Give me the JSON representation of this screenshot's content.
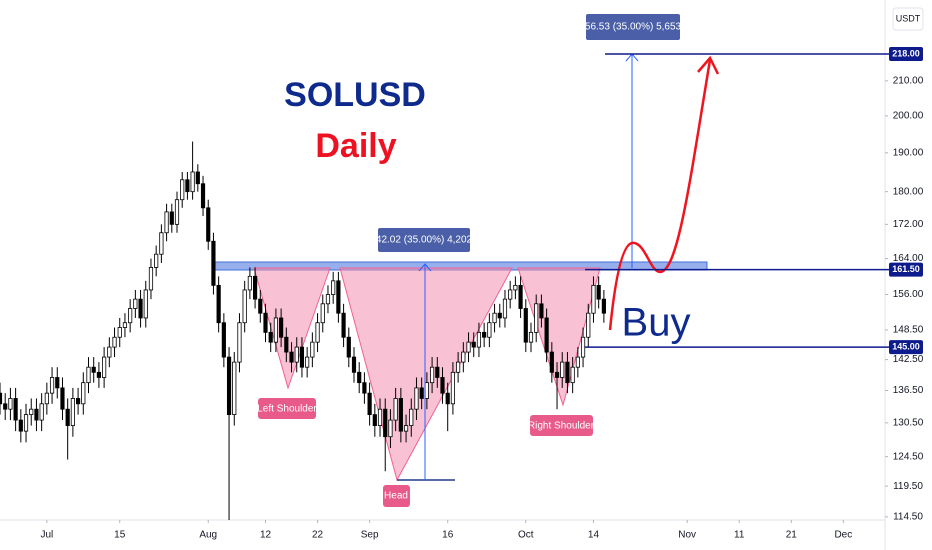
{
  "chart_data": {
    "type": "candlestick",
    "title": "SOLUSD",
    "subtitle": "Daily",
    "currency": "USDT",
    "log_scale": true,
    "up_color": "#ffffff",
    "down_color": "#000000",
    "x": [
      -9,
      -8,
      -7,
      -6,
      -5,
      -4,
      -3,
      -2,
      -1,
      0,
      1,
      2,
      3,
      4,
      5,
      6,
      7,
      8,
      9,
      10,
      11,
      12,
      13,
      14,
      15,
      16,
      17,
      18,
      19,
      20,
      21,
      22,
      23,
      24,
      25,
      26,
      27,
      28,
      29,
      30,
      31,
      32,
      33,
      34,
      35,
      36,
      37,
      38,
      39,
      40,
      41,
      42,
      43,
      44,
      45,
      46,
      47,
      48,
      49,
      50,
      51,
      52,
      53,
      54,
      55,
      56,
      57,
      58,
      59,
      60,
      61,
      62,
      63,
      64,
      65,
      66,
      67,
      68,
      69,
      70,
      71,
      72,
      73,
      74,
      75,
      76,
      77,
      78,
      79,
      80,
      81,
      82,
      83,
      84,
      85,
      86,
      87,
      88,
      89,
      90,
      91,
      92,
      93,
      94,
      95,
      96,
      97,
      98,
      99,
      100,
      101,
      102,
      103,
      104,
      105,
      106,
      107
    ],
    "open": [
      136,
      134,
      133,
      135,
      131,
      129,
      132,
      133,
      131,
      134,
      136,
      139,
      137,
      133,
      130,
      135,
      134,
      138,
      141,
      140,
      139,
      143,
      145,
      147,
      149,
      150,
      153,
      155,
      151,
      157,
      162,
      165,
      170,
      175,
      172,
      178,
      183,
      180,
      185,
      182,
      176,
      168,
      158,
      150,
      143,
      132,
      142,
      150,
      157,
      160,
      155,
      152,
      148,
      146,
      151,
      147,
      144,
      142,
      145,
      141,
      143,
      146,
      150,
      154,
      156,
      159,
      152,
      147,
      143,
      140,
      138,
      136,
      132,
      130,
      133,
      128,
      131,
      135,
      129,
      130,
      133,
      137,
      135,
      138,
      141,
      139,
      136,
      134,
      140,
      142,
      144,
      146,
      145,
      148,
      147,
      150,
      152,
      151,
      155,
      157,
      158,
      153,
      146,
      148,
      154,
      151,
      144,
      140,
      139,
      142,
      138,
      141,
      143,
      147,
      152,
      158,
      155
    ],
    "high": [
      138,
      136,
      137,
      137,
      133,
      134,
      135,
      135,
      136,
      138,
      141,
      141,
      139,
      135,
      137,
      137,
      140,
      143,
      143,
      142,
      145,
      147,
      149,
      151,
      152,
      155,
      157,
      157,
      159,
      164,
      167,
      172,
      177,
      177,
      180,
      185,
      185,
      193,
      187,
      184,
      178,
      170,
      160,
      152,
      145,
      144,
      152,
      159,
      162,
      162,
      157,
      154,
      150,
      153,
      153,
      149,
      146,
      147,
      147,
      145,
      148,
      152,
      156,
      158,
      161,
      161,
      154,
      149,
      145,
      142,
      140,
      138,
      134,
      135,
      135,
      133,
      137,
      137,
      132,
      135,
      139,
      139,
      140,
      143,
      143,
      141,
      138,
      142,
      144,
      146,
      148,
      148,
      150,
      150,
      152,
      154,
      154,
      157,
      159,
      160,
      160,
      155,
      150,
      156,
      156,
      153,
      146,
      142,
      144,
      144,
      143,
      145,
      149,
      154,
      160,
      160,
      157
    ],
    "low": [
      132,
      131,
      131,
      129,
      127,
      127,
      130,
      129,
      129,
      132,
      134,
      135,
      131,
      124,
      128,
      132,
      132,
      136,
      138,
      137,
      137,
      141,
      143,
      145,
      147,
      148,
      151,
      149,
      149,
      155,
      160,
      163,
      168,
      170,
      170,
      176,
      178,
      178,
      180,
      174,
      166,
      156,
      148,
      141,
      114,
      130,
      140,
      148,
      155,
      153,
      150,
      146,
      144,
      144,
      145,
      142,
      140,
      140,
      139,
      139,
      141,
      144,
      148,
      152,
      154,
      150,
      145,
      141,
      138,
      136,
      134,
      130,
      128,
      128,
      122,
      126,
      129,
      127,
      127,
      128,
      131,
      133,
      133,
      136,
      137,
      134,
      129,
      132,
      138,
      140,
      142,
      143,
      143,
      145,
      145,
      148,
      149,
      149,
      153,
      155,
      151,
      144,
      144,
      146,
      149,
      142,
      138,
      133,
      137,
      136,
      136,
      139,
      141,
      145,
      150,
      153,
      150
    ],
    "close": [
      134,
      133,
      135,
      131,
      129,
      132,
      133,
      131,
      134,
      136,
      139,
      137,
      133,
      130,
      135,
      134,
      138,
      141,
      140,
      139,
      143,
      145,
      147,
      149,
      150,
      153,
      155,
      151,
      157,
      162,
      165,
      170,
      175,
      172,
      178,
      183,
      180,
      185,
      182,
      176,
      168,
      158,
      150,
      143,
      132,
      142,
      150,
      157,
      160,
      155,
      152,
      148,
      146,
      151,
      147,
      144,
      142,
      145,
      141,
      143,
      146,
      150,
      154,
      156,
      159,
      152,
      147,
      143,
      140,
      138,
      136,
      132,
      130,
      133,
      128,
      131,
      135,
      129,
      130,
      133,
      137,
      135,
      138,
      141,
      139,
      136,
      134,
      140,
      142,
      144,
      146,
      145,
      148,
      147,
      150,
      152,
      151,
      155,
      157,
      158,
      153,
      146,
      148,
      154,
      151,
      144,
      140,
      139,
      142,
      138,
      141,
      143,
      147,
      152,
      158,
      155,
      152
    ],
    "xlim": [
      -9,
      161
    ],
    "xticks": [
      {
        "value": 0,
        "label": "Jul"
      },
      {
        "value": 14,
        "label": "15"
      },
      {
        "value": 31,
        "label": "Aug"
      },
      {
        "value": 42,
        "label": "12"
      },
      {
        "value": 52,
        "label": "22"
      },
      {
        "value": 62,
        "label": "Sep"
      },
      {
        "value": 77,
        "label": "16"
      },
      {
        "value": 92,
        "label": "Oct"
      },
      {
        "value": 105,
        "label": "14"
      },
      {
        "value": 123,
        "label": "Nov"
      },
      {
        "value": 133,
        "label": "11"
      },
      {
        "value": 143,
        "label": "21"
      },
      {
        "value": 153,
        "label": "Dec"
      }
    ],
    "ylim": [
      114,
      235
    ],
    "yticks": [
      {
        "value": 210,
        "label": "210.00"
      },
      {
        "value": 200,
        "label": "200.00"
      },
      {
        "value": 190,
        "label": "190.00"
      },
      {
        "value": 180,
        "label": "180.00"
      },
      {
        "value": 172,
        "label": "172.00"
      },
      {
        "value": 164,
        "label": "164.00"
      },
      {
        "value": 156,
        "label": "156.00"
      },
      {
        "value": 148.5,
        "label": "148.50"
      },
      {
        "value": 142.5,
        "label": "142.50"
      },
      {
        "value": 136.5,
        "label": "136.50"
      },
      {
        "value": 130.5,
        "label": "130.50"
      },
      {
        "value": 124.5,
        "label": "124.50"
      },
      {
        "value": 119.5,
        "label": "119.50"
      },
      {
        "value": 114.5,
        "label": "114.50"
      }
    ],
    "levels": [
      {
        "value": 218,
        "label": "218.00"
      },
      {
        "value": 161.5,
        "label": "161.50"
      },
      {
        "value": 145,
        "label": "145.00"
      }
    ],
    "measure_1": "42.02 (35.00%) 4,202",
    "measure_2": "56.53 (35.00%) 5,653",
    "pattern_labels": [
      "Left Shoulder",
      "Head",
      "Right Shoulder"
    ],
    "signal": "Buy"
  }
}
